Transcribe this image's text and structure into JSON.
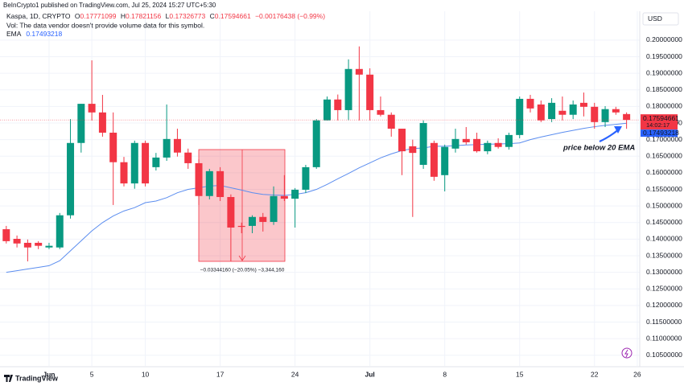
{
  "header": {
    "publisher": "BeInCrypto1 published on TradingView.com, Jul 25, 2024 15:27 UTC+5:30"
  },
  "footer": {
    "brand": "TradingView"
  },
  "chart_data": {
    "type": "candlestick",
    "title": "Kaspa, 1D, CRYPTO",
    "legend_letters": {
      "open": "O",
      "high": "H",
      "low": "L",
      "close": "C"
    },
    "change_label": "−0.00176438 (−0.99%)",
    "volume_note": "Vol: The data vendor doesn't provide volume data for this symbol.",
    "currency": "USD",
    "countdown": "14:02:17",
    "up_color": "#089981",
    "down_color": "#f23645",
    "grid": true,
    "x": [
      "2024-05-28",
      "2024-05-29",
      "2024-05-30",
      "2024-05-31",
      "2024-06-01",
      "2024-06-02",
      "2024-06-03",
      "2024-06-04",
      "2024-06-05",
      "2024-06-06",
      "2024-06-07",
      "2024-06-08",
      "2024-06-09",
      "2024-06-10",
      "2024-06-11",
      "2024-06-12",
      "2024-06-13",
      "2024-06-14",
      "2024-06-15",
      "2024-06-16",
      "2024-06-17",
      "2024-06-18",
      "2024-06-19",
      "2024-06-20",
      "2024-06-21",
      "2024-06-22",
      "2024-06-23",
      "2024-06-24",
      "2024-06-25",
      "2024-06-26",
      "2024-06-27",
      "2024-06-28",
      "2024-06-29",
      "2024-06-30",
      "2024-07-01",
      "2024-07-02",
      "2024-07-03",
      "2024-07-04",
      "2024-07-05",
      "2024-07-06",
      "2024-07-07",
      "2024-07-08",
      "2024-07-09",
      "2024-07-10",
      "2024-07-11",
      "2024-07-12",
      "2024-07-13",
      "2024-07-14",
      "2024-07-15",
      "2024-07-16",
      "2024-07-17",
      "2024-07-18",
      "2024-07-19",
      "2024-07-20",
      "2024-07-21",
      "2024-07-22",
      "2024-07-23",
      "2024-07-24",
      "2024-07-25"
    ],
    "open": [
      0.143,
      0.1401,
      0.1389,
      0.1389,
      0.1375,
      0.1375,
      0.1472,
      0.169,
      0.1808,
      0.1782,
      0.1721,
      0.1632,
      0.1568,
      0.169,
      0.1617,
      0.1646,
      0.1702,
      0.1661,
      0.1629,
      0.153,
      0.1605,
      0.1527,
      0.144,
      0.144,
      0.1467,
      0.1452,
      0.153,
      0.1522,
      0.1549,
      0.1617,
      0.1758,
      0.1821,
      0.1789,
      0.1913,
      0.1896,
      0.1789,
      0.1775,
      0.1733,
      0.168,
      0.1624,
      0.169,
      0.1593,
      0.1673,
      0.1702,
      0.1702,
      0.1665,
      0.169,
      0.1678,
      0.1714,
      0.1823,
      0.1806,
      0.1762,
      0.1787,
      0.1775,
      0.1811,
      0.1799,
      0.1753,
      0.1792,
      0.17771099
    ],
    "high": [
      0.144,
      0.1411,
      0.1399,
      0.1394,
      0.1389,
      0.1479,
      0.1762,
      0.1808,
      0.1939,
      0.1835,
      0.1782,
      0.1648,
      0.1697,
      0.1697,
      0.166,
      0.1806,
      0.1733,
      0.1673,
      0.1641,
      0.1612,
      0.1617,
      0.1535,
      0.145,
      0.1472,
      0.1479,
      0.1559,
      0.1593,
      0.1554,
      0.1624,
      0.1762,
      0.183,
      0.1836,
      0.1942,
      0.1981,
      0.1915,
      0.183,
      0.1782,
      0.1733,
      0.17,
      0.1758,
      0.1697,
      0.1685,
      0.1733,
      0.1738,
      0.1721,
      0.1697,
      0.1704,
      0.1721,
      0.183,
      0.1835,
      0.1818,
      0.1825,
      0.183,
      0.1818,
      0.1842,
      0.1811,
      0.1801,
      0.1799,
      0.17821156
    ],
    "low": [
      0.1387,
      0.1375,
      0.1333,
      0.137,
      0.137,
      0.137,
      0.1462,
      0.1661,
      0.1758,
      0.1709,
      0.1503,
      0.1559,
      0.1552,
      0.1559,
      0.1607,
      0.1636,
      0.1649,
      0.1612,
      0.1503,
      0.152,
      0.1515,
      0.1333,
      0.1418,
      0.1418,
      0.1423,
      0.1443,
      0.1515,
      0.1435,
      0.1539,
      0.1612,
      0.1758,
      0.1758,
      0.1758,
      0.1758,
      0.1758,
      0.177,
      0.1709,
      0.1593,
      0.1467,
      0.1612,
      0.1576,
      0.1544,
      0.1661,
      0.1685,
      0.1661,
      0.1656,
      0.1673,
      0.167,
      0.1704,
      0.1782,
      0.1753,
      0.1753,
      0.1758,
      0.1762,
      0.177,
      0.1733,
      0.1738,
      0.1775,
      0.17326773
    ],
    "close": [
      0.1394,
      0.1387,
      0.1375,
      0.138,
      0.138,
      0.1472,
      0.169,
      0.1808,
      0.1782,
      0.1721,
      0.1632,
      0.1568,
      0.169,
      0.1568,
      0.1646,
      0.1702,
      0.1661,
      0.1629,
      0.153,
      0.1605,
      0.1527,
      0.1435,
      0.1437,
      0.1467,
      0.1452,
      0.153,
      0.1522,
      0.1549,
      0.1617,
      0.1758,
      0.1821,
      0.1789,
      0.1913,
      0.1896,
      0.1789,
      0.1775,
      0.1733,
      0.1665,
      0.166,
      0.175,
      0.1588,
      0.1678,
      0.1702,
      0.1692,
      0.1665,
      0.169,
      0.1678,
      0.1714,
      0.1823,
      0.1794,
      0.1758,
      0.1811,
      0.1775,
      0.1806,
      0.1799,
      0.1753,
      0.1792,
      0.1782,
      0.17594661
    ],
    "ema": {
      "name": "EMA",
      "color": "#5b8def",
      "values": [
        0.13,
        0.1305,
        0.131,
        0.1315,
        0.132,
        0.1335,
        0.1365,
        0.1395,
        0.1425,
        0.145,
        0.147,
        0.1485,
        0.1495,
        0.151,
        0.1515,
        0.1525,
        0.154,
        0.155,
        0.1555,
        0.156,
        0.1562,
        0.1555,
        0.1548,
        0.154,
        0.1535,
        0.1533,
        0.1532,
        0.1535,
        0.154,
        0.155,
        0.1565,
        0.1582,
        0.1598,
        0.1615,
        0.163,
        0.1645,
        0.1657,
        0.1667,
        0.1673,
        0.1675,
        0.168,
        0.168,
        0.1682,
        0.1684,
        0.1685,
        0.1686,
        0.1687,
        0.1688,
        0.169,
        0.17,
        0.1708,
        0.1715,
        0.1722,
        0.1728,
        0.1734,
        0.1739,
        0.1743,
        0.1746,
        0.17493218
      ]
    },
    "ylim": [
      0.1018,
      0.2087
    ],
    "yticks": [
      {
        "value": 0.105,
        "label": "0.10500000"
      },
      {
        "value": 0.11,
        "label": "0.11000000"
      },
      {
        "value": 0.115,
        "label": "0.11500000"
      },
      {
        "value": 0.12,
        "label": "0.12000000"
      },
      {
        "value": 0.125,
        "label": "0.12500000"
      },
      {
        "value": 0.13,
        "label": "0.13000000"
      },
      {
        "value": 0.135,
        "label": "0.13500000"
      },
      {
        "value": 0.14,
        "label": "0.14000000"
      },
      {
        "value": 0.145,
        "label": "0.14500000"
      },
      {
        "value": 0.15,
        "label": "0.15000000"
      },
      {
        "value": 0.155,
        "label": "0.15500000"
      },
      {
        "value": 0.16,
        "label": "0.16000000"
      },
      {
        "value": 0.165,
        "label": "0.16500000"
      },
      {
        "value": 0.17,
        "label": "0.17000000"
      },
      {
        "value": 0.175,
        "label": "0.17500000"
      },
      {
        "value": 0.18,
        "label": "0.18000000"
      },
      {
        "value": 0.185,
        "label": "0.18500000"
      },
      {
        "value": 0.19,
        "label": "0.19000000"
      },
      {
        "value": 0.195,
        "label": "0.19500000"
      },
      {
        "value": 0.2,
        "label": "0.20000000"
      }
    ],
    "xticks": [
      {
        "value": "2024-06-01",
        "label": "Jun"
      },
      {
        "value": "2024-06-05",
        "label": "5"
      },
      {
        "value": "2024-06-10",
        "label": "10"
      },
      {
        "value": "2024-06-17",
        "label": "17"
      },
      {
        "value": "2024-06-24",
        "label": "24"
      },
      {
        "value": "2024-07-01",
        "label": "Jul"
      },
      {
        "value": "2024-07-08",
        "label": "8"
      },
      {
        "value": "2024-07-15",
        "label": "15"
      },
      {
        "value": "2024-07-22",
        "label": "22"
      },
      {
        "value": "2024-07-26",
        "label": "26"
      }
    ],
    "annotations": [
      {
        "text": "price below 20 EMA"
      },
      {
        "text": "−0.03344160 (−20.05%) −3,344,160"
      }
    ]
  }
}
